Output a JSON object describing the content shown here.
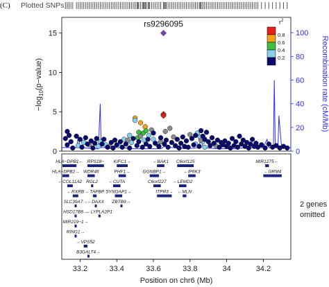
{
  "panel_label": "(C)",
  "snp_track_label": "Plotted SNPs",
  "chart_data": {
    "type": "scatter",
    "title": "",
    "xlabel": "Position on chr6 (Mb)",
    "ylabel": "-log10(p-value)",
    "ylabel_main": "−log",
    "ylabel_sub": "10",
    "ylabel_rest": "(p−value)",
    "y2label": "Recombination rate (cM/Mb)",
    "xlim": [
      33.1,
      34.35
    ],
    "ylim": [
      0,
      17
    ],
    "y2lim": [
      0,
      113
    ],
    "xticks": [
      33.2,
      33.4,
      33.6,
      33.8,
      34.0,
      34.2
    ],
    "xtick_labels": [
      "33.2",
      "33.4",
      "33.6",
      "33.8",
      "34",
      "34.2"
    ],
    "yticks": [
      0,
      5,
      10,
      15
    ],
    "yticks_labels": [
      "0",
      "5",
      "10",
      "15"
    ],
    "y2ticks": [
      0,
      20,
      40,
      60,
      80,
      100
    ],
    "y2tick_labels": [
      "0",
      "20",
      "40",
      "60",
      "80",
      "100"
    ],
    "lead_snp": {
      "name": "rs9296095",
      "x": 33.655,
      "y": 15.0,
      "color": "#7b3fbf"
    },
    "legend": {
      "title": "r",
      "title_sup": "2",
      "entries": [
        {
          "label": "0.8",
          "color": "#e8211c"
        },
        {
          "label": "0.6",
          "color": "#f4a11c"
        },
        {
          "label": "0.4",
          "color": "#3fbf3f"
        },
        {
          "label": "0.2",
          "color": "#87ceeb"
        },
        {
          "label": "",
          "color": "#0a0a6e"
        }
      ],
      "placement": "top-right"
    },
    "colors": {
      "r2_high": "#e8211c",
      "r2_mid_high": "#f4a11c",
      "r2_mid": "#3fbf3f",
      "r2_low_mid": "#87ceeb",
      "r2_low": "#0a0a6e",
      "missing": "#8c8c8c",
      "recomb": "#2c2cff",
      "axis_right": "#2c2cff",
      "gene": "#1a237e"
    },
    "points": [
      {
        "x": 33.655,
        "y": 4.7,
        "c": "r2_high"
      },
      {
        "x": 33.655,
        "y": 4.5,
        "c": "r2_high"
      },
      {
        "x": 33.5,
        "y": 4.2,
        "c": "r2_mid_high"
      },
      {
        "x": 33.53,
        "y": 3.6,
        "c": "r2_mid_high"
      },
      {
        "x": 33.555,
        "y": 3.1,
        "c": "r2_mid_high"
      },
      {
        "x": 33.52,
        "y": 2.4,
        "c": "r2_mid"
      },
      {
        "x": 33.545,
        "y": 2.3,
        "c": "r2_mid"
      },
      {
        "x": 33.56,
        "y": 2.6,
        "c": "r2_mid"
      },
      {
        "x": 33.515,
        "y": 1.7,
        "c": "r2_mid"
      },
      {
        "x": 33.5,
        "y": 3.9,
        "c": "r2_low_mid"
      },
      {
        "x": 33.47,
        "y": 2.0,
        "c": "r2_low_mid"
      },
      {
        "x": 33.44,
        "y": 1.5,
        "c": "r2_low_mid"
      },
      {
        "x": 33.48,
        "y": 1.1,
        "c": "r2_low_mid"
      },
      {
        "x": 33.55,
        "y": 1.4,
        "c": "r2_low_mid"
      },
      {
        "x": 33.575,
        "y": 2.0,
        "c": "r2_low_mid"
      },
      {
        "x": 33.6,
        "y": 1.5,
        "c": "r2_low_mid"
      },
      {
        "x": 33.31,
        "y": 1.2,
        "c": "r2_low_mid"
      },
      {
        "x": 33.34,
        "y": 0.8,
        "c": "r2_low_mid"
      },
      {
        "x": 33.3,
        "y": 0.6,
        "c": "r2_low_mid"
      },
      {
        "x": 33.22,
        "y": 1.1,
        "c": "r2_low_mid"
      },
      {
        "x": 33.19,
        "y": 0.7,
        "c": "r2_low_mid"
      },
      {
        "x": 33.84,
        "y": 2.3,
        "c": "r2_low_mid"
      },
      {
        "x": 33.855,
        "y": 1.8,
        "c": "r2_low_mid"
      },
      {
        "x": 33.87,
        "y": 1.2,
        "c": "r2_low_mid"
      },
      {
        "x": 33.83,
        "y": 0.9,
        "c": "r2_low_mid"
      },
      {
        "x": 33.88,
        "y": 0.5,
        "c": "r2_low_mid"
      },
      {
        "x": 33.62,
        "y": 0.9,
        "c": "r2_low_mid"
      },
      {
        "x": 33.41,
        "y": 0.7,
        "c": "r2_low_mid"
      },
      {
        "x": 33.665,
        "y": 2.5,
        "c": "missing"
      },
      {
        "x": 33.69,
        "y": 2.9,
        "c": "missing"
      },
      {
        "x": 33.59,
        "y": 2.7,
        "c": "missing"
      },
      {
        "x": 33.53,
        "y": 1.9,
        "c": "missing"
      },
      {
        "x": 33.46,
        "y": 1.4,
        "c": "missing"
      },
      {
        "x": 33.71,
        "y": 1.8,
        "c": "missing"
      },
      {
        "x": 33.64,
        "y": 1.2,
        "c": "missing"
      },
      {
        "x": 33.25,
        "y": 0.8,
        "c": "missing"
      },
      {
        "x": 33.36,
        "y": 0.6,
        "c": "missing"
      },
      {
        "x": 33.8,
        "y": 2.1,
        "c": "missing"
      },
      {
        "x": 33.86,
        "y": 1.4,
        "c": "missing"
      },
      {
        "x": 33.94,
        "y": 0.7,
        "c": "missing"
      },
      {
        "x": 33.13,
        "y": 2.5,
        "c": "r2_low"
      },
      {
        "x": 33.14,
        "y": 2.0,
        "c": "r2_low"
      },
      {
        "x": 33.12,
        "y": 1.6,
        "c": "r2_low"
      },
      {
        "x": 33.15,
        "y": 1.2,
        "c": "r2_low"
      },
      {
        "x": 33.13,
        "y": 0.8,
        "c": "r2_low"
      },
      {
        "x": 33.16,
        "y": 0.4,
        "c": "r2_low"
      },
      {
        "x": 33.18,
        "y": 1.9,
        "c": "r2_low"
      },
      {
        "x": 33.2,
        "y": 1.5,
        "c": "r2_low"
      },
      {
        "x": 33.21,
        "y": 0.5,
        "c": "r2_low"
      },
      {
        "x": 33.23,
        "y": 1.7,
        "c": "r2_low"
      },
      {
        "x": 33.24,
        "y": 0.9,
        "c": "r2_low"
      },
      {
        "x": 33.26,
        "y": 1.3,
        "c": "r2_low"
      },
      {
        "x": 33.27,
        "y": 0.4,
        "c": "r2_low"
      },
      {
        "x": 33.28,
        "y": 1.0,
        "c": "r2_low"
      },
      {
        "x": 33.29,
        "y": 1.6,
        "c": "r2_low"
      },
      {
        "x": 33.32,
        "y": 0.9,
        "c": "r2_low"
      },
      {
        "x": 33.33,
        "y": 1.5,
        "c": "r2_low"
      },
      {
        "x": 33.35,
        "y": 0.5,
        "c": "r2_low"
      },
      {
        "x": 33.37,
        "y": 1.1,
        "c": "r2_low"
      },
      {
        "x": 33.38,
        "y": 0.4,
        "c": "r2_low"
      },
      {
        "x": 33.39,
        "y": 1.4,
        "c": "r2_low"
      },
      {
        "x": 33.4,
        "y": 0.8,
        "c": "r2_low"
      },
      {
        "x": 33.42,
        "y": 1.2,
        "c": "r2_low"
      },
      {
        "x": 33.43,
        "y": 0.5,
        "c": "r2_low"
      },
      {
        "x": 33.45,
        "y": 0.9,
        "c": "r2_low"
      },
      {
        "x": 33.47,
        "y": 0.4,
        "c": "r2_low"
      },
      {
        "x": 33.49,
        "y": 1.6,
        "c": "r2_low"
      },
      {
        "x": 33.51,
        "y": 0.7,
        "c": "r2_low"
      },
      {
        "x": 33.52,
        "y": 1.2,
        "c": "r2_low"
      },
      {
        "x": 33.54,
        "y": 0.5,
        "c": "r2_low"
      },
      {
        "x": 33.56,
        "y": 0.9,
        "c": "r2_low"
      },
      {
        "x": 33.57,
        "y": 1.5,
        "c": "r2_low"
      },
      {
        "x": 33.58,
        "y": 0.6,
        "c": "r2_low"
      },
      {
        "x": 33.6,
        "y": 2.3,
        "c": "r2_low"
      },
      {
        "x": 33.61,
        "y": 1.0,
        "c": "r2_low"
      },
      {
        "x": 33.63,
        "y": 0.6,
        "c": "r2_low"
      },
      {
        "x": 33.64,
        "y": 1.7,
        "c": "r2_low"
      },
      {
        "x": 33.66,
        "y": 0.9,
        "c": "r2_low"
      },
      {
        "x": 33.67,
        "y": 1.4,
        "c": "r2_low"
      },
      {
        "x": 33.68,
        "y": 0.5,
        "c": "r2_low"
      },
      {
        "x": 33.7,
        "y": 1.1,
        "c": "r2_low"
      },
      {
        "x": 33.72,
        "y": 0.7,
        "c": "r2_low"
      },
      {
        "x": 33.73,
        "y": 1.5,
        "c": "r2_low"
      },
      {
        "x": 33.74,
        "y": 0.4,
        "c": "r2_low"
      },
      {
        "x": 33.75,
        "y": 1.0,
        "c": "r2_low"
      },
      {
        "x": 33.76,
        "y": 1.8,
        "c": "r2_low"
      },
      {
        "x": 33.77,
        "y": 0.6,
        "c": "r2_low"
      },
      {
        "x": 33.78,
        "y": 1.3,
        "c": "r2_low"
      },
      {
        "x": 33.79,
        "y": 0.5,
        "c": "r2_low"
      },
      {
        "x": 33.81,
        "y": 1.6,
        "c": "r2_low"
      },
      {
        "x": 33.82,
        "y": 0.8,
        "c": "r2_low"
      },
      {
        "x": 33.83,
        "y": 2.0,
        "c": "r2_low"
      },
      {
        "x": 33.85,
        "y": 0.6,
        "c": "r2_low"
      },
      {
        "x": 33.86,
        "y": 2.6,
        "c": "r2_low"
      },
      {
        "x": 33.87,
        "y": 1.9,
        "c": "r2_low"
      },
      {
        "x": 33.88,
        "y": 1.5,
        "c": "r2_low"
      },
      {
        "x": 33.89,
        "y": 2.4,
        "c": "r2_low"
      },
      {
        "x": 33.9,
        "y": 1.2,
        "c": "r2_low"
      },
      {
        "x": 33.91,
        "y": 0.7,
        "c": "r2_low"
      },
      {
        "x": 33.92,
        "y": 1.7,
        "c": "r2_low"
      },
      {
        "x": 33.93,
        "y": 1.0,
        "c": "r2_low"
      },
      {
        "x": 33.95,
        "y": 1.4,
        "c": "r2_low"
      },
      {
        "x": 33.96,
        "y": 0.5,
        "c": "r2_low"
      },
      {
        "x": 33.97,
        "y": 1.1,
        "c": "r2_low"
      },
      {
        "x": 33.98,
        "y": 0.8,
        "c": "r2_low"
      },
      {
        "x": 33.99,
        "y": 1.3,
        "c": "r2_low"
      },
      {
        "x": 34.0,
        "y": 0.6,
        "c": "r2_low"
      },
      {
        "x": 34.01,
        "y": 1.0,
        "c": "r2_low"
      },
      {
        "x": 34.02,
        "y": 0.4,
        "c": "r2_low"
      },
      {
        "x": 34.03,
        "y": 1.6,
        "c": "r2_low"
      },
      {
        "x": 34.04,
        "y": 0.7,
        "c": "r2_low"
      },
      {
        "x": 34.05,
        "y": 1.2,
        "c": "r2_low"
      },
      {
        "x": 34.06,
        "y": 0.5,
        "c": "r2_low"
      },
      {
        "x": 34.07,
        "y": 1.9,
        "c": "r2_low"
      },
      {
        "x": 34.08,
        "y": 0.9,
        "c": "r2_low"
      },
      {
        "x": 34.09,
        "y": 1.4,
        "c": "r2_low"
      },
      {
        "x": 34.1,
        "y": 0.6,
        "c": "r2_low"
      },
      {
        "x": 34.11,
        "y": 1.1,
        "c": "r2_low"
      },
      {
        "x": 34.12,
        "y": 0.4,
        "c": "r2_low"
      },
      {
        "x": 34.13,
        "y": 0.9,
        "c": "r2_low"
      },
      {
        "x": 34.14,
        "y": 1.5,
        "c": "r2_low"
      },
      {
        "x": 34.15,
        "y": 0.6,
        "c": "r2_low"
      },
      {
        "x": 34.16,
        "y": 1.0,
        "c": "r2_low"
      },
      {
        "x": 34.17,
        "y": 0.5,
        "c": "r2_low"
      },
      {
        "x": 34.19,
        "y": 0.8,
        "c": "r2_low"
      },
      {
        "x": 34.21,
        "y": 0.4,
        "c": "r2_low"
      },
      {
        "x": 34.23,
        "y": 0.9,
        "c": "r2_low"
      },
      {
        "x": 34.25,
        "y": 0.5,
        "c": "r2_low"
      },
      {
        "x": 34.27,
        "y": 0.7,
        "c": "r2_low"
      },
      {
        "x": 34.29,
        "y": 0.4,
        "c": "r2_low"
      },
      {
        "x": 34.31,
        "y": 0.6,
        "c": "r2_low"
      },
      {
        "x": 34.33,
        "y": 0.4,
        "c": "r2_low"
      }
    ],
    "recombination": [
      [
        33.1,
        3
      ],
      [
        33.18,
        3
      ],
      [
        33.19,
        12
      ],
      [
        33.2,
        3
      ],
      [
        33.28,
        2
      ],
      [
        33.3,
        2
      ],
      [
        33.31,
        40
      ],
      [
        33.315,
        3
      ],
      [
        33.4,
        3
      ],
      [
        33.41,
        8
      ],
      [
        33.42,
        3
      ],
      [
        33.5,
        2
      ],
      [
        33.6,
        2
      ],
      [
        33.64,
        2
      ],
      [
        33.66,
        4
      ],
      [
        33.7,
        3
      ],
      [
        33.78,
        2
      ],
      [
        33.85,
        3
      ],
      [
        33.86,
        14
      ],
      [
        33.87,
        3
      ],
      [
        33.95,
        2
      ],
      [
        34.0,
        2
      ],
      [
        34.05,
        2
      ],
      [
        34.1,
        3
      ],
      [
        34.15,
        3
      ],
      [
        34.2,
        3
      ],
      [
        34.22,
        10
      ],
      [
        34.23,
        3
      ],
      [
        34.255,
        3
      ],
      [
        34.26,
        60
      ],
      [
        34.265,
        3
      ],
      [
        34.28,
        3
      ],
      [
        34.285,
        30
      ],
      [
        34.29,
        20
      ],
      [
        34.3,
        3
      ],
      [
        34.35,
        3
      ]
    ],
    "genes": [
      {
        "name": "HLA−DPB1",
        "label": "HLA−DPB1←",
        "x1": 33.04,
        "x2": 33.18,
        "row": 0,
        "dir": "rtl"
      },
      {
        "name": "RPS18",
        "label": "RPS18−",
        "x1": 33.24,
        "x2": 33.33,
        "row": 0,
        "dir": "ltr"
      },
      {
        "name": "KIFC1",
        "label": "KIFC1→",
        "x1": 33.4,
        "x2": 33.46,
        "row": 0,
        "dir": "ltr"
      },
      {
        "name": "BAK1",
        "label": "←BAK1",
        "x1": 33.62,
        "x2": 33.66,
        "row": 0,
        "dir": "rtl"
      },
      {
        "name": "C6orf125",
        "label": "C6orf125",
        "x1": 33.73,
        "x2": 33.82,
        "row": 0,
        "dir": "rtl"
      },
      {
        "name": "MIR1275",
        "label": "MIR1275←",
        "x1": 34.21,
        "x2": 34.23,
        "row": 0,
        "dir": "rtl"
      },
      {
        "name": "HLA−DPB2",
        "label": "HLA−DPB2→",
        "x1": 33.04,
        "x2": 33.14,
        "row": 1,
        "dir": "ltr"
      },
      {
        "name": "WDR46",
        "label": "WDR46",
        "x1": 33.24,
        "x2": 33.28,
        "row": 1,
        "dir": "rtl"
      },
      {
        "name": "PHF1",
        "label": "PHF1→",
        "x1": 33.41,
        "x2": 33.45,
        "row": 1,
        "dir": "ltr"
      },
      {
        "name": "GGNBP1",
        "label": "GGNBP1→",
        "x1": 33.58,
        "x2": 33.63,
        "row": 1,
        "dir": "ltr"
      },
      {
        "name": "IP6K3",
        "label": "←IP6K3",
        "x1": 33.79,
        "x2": 33.83,
        "row": 1,
        "dir": "rtl"
      },
      {
        "name": "GRM4",
        "label": "←GRM4",
        "x1": 34.2,
        "x2": 34.3,
        "row": 1,
        "dir": "rtl"
      },
      {
        "name": "COL11A2",
        "label": "←COL11A2",
        "x1": 33.13,
        "x2": 33.16,
        "row": 2,
        "dir": "rtl"
      },
      {
        "name": "RGL2",
        "label": "RGL2",
        "x1": 33.26,
        "x2": 33.27,
        "row": 2,
        "dir": "ltr"
      },
      {
        "name": "CUTA",
        "label": "←CUTA",
        "x1": 33.38,
        "x2": 33.42,
        "row": 2,
        "dir": "rtl"
      },
      {
        "name": "C6orf227",
        "label": "C6orf227",
        "x1": 33.6,
        "x2": 33.64,
        "row": 2,
        "dir": "rtl"
      },
      {
        "name": "LEMD2",
        "label": "←LEMD2",
        "x1": 33.74,
        "x2": 33.78,
        "row": 2,
        "dir": "rtl"
      },
      {
        "name": "RXRB",
        "label": "←RXRB",
        "x1": 33.16,
        "x2": 33.19,
        "row": 3,
        "dir": "rtl"
      },
      {
        "name": "TAPBP",
        "label": "←TAPBP",
        "x1": 33.27,
        "x2": 33.29,
        "row": 3,
        "dir": "rtl"
      },
      {
        "name": "SYNGAP1",
        "label": "SYNGAP1→",
        "x1": 33.39,
        "x2": 33.43,
        "row": 3,
        "dir": "ltr"
      },
      {
        "name": "ITPR3",
        "label": "ITPR3→",
        "x1": 33.62,
        "x2": 33.7,
        "row": 3,
        "dir": "ltr"
      },
      {
        "name": "MLN",
        "label": "←MLN",
        "x1": 33.76,
        "x2": 33.78,
        "row": 3,
        "dir": "rtl"
      },
      {
        "name": "SLC39A7",
        "label": "SLC39A7→",
        "x1": 33.17,
        "x2": 33.18,
        "row": 4,
        "dir": "ltr"
      },
      {
        "name": "DAXX",
        "label": "←DAXX",
        "x1": 33.28,
        "x2": 33.29,
        "row": 4,
        "dir": "rtl"
      },
      {
        "name": "ZBTB9",
        "label": "ZBTB9→",
        "x1": 33.42,
        "x2": 33.43,
        "row": 4,
        "dir": "ltr"
      },
      {
        "name": "HSD17B8",
        "label": "HSD17B8→",
        "x1": 33.17,
        "x2": 33.18,
        "row": 5,
        "dir": "ltr"
      },
      {
        "name": "LYPLA2P1",
        "label": "←LYPLA2P1",
        "x1": 33.3,
        "x2": 33.31,
        "row": 5,
        "dir": "rtl"
      },
      {
        "name": "MIR219−1",
        "label": "MIR219−1→",
        "x1": 33.17,
        "x2": 33.18,
        "row": 6,
        "dir": "ltr"
      },
      {
        "name": "RING1",
        "label": "RING1→",
        "x1": 33.17,
        "x2": 33.18,
        "row": 7,
        "dir": "ltr"
      },
      {
        "name": "VPS52",
        "label": "←VPS52",
        "x1": 33.22,
        "x2": 33.24,
        "row": 8,
        "dir": "rtl"
      },
      {
        "name": "B3GALT4",
        "label": "B3GALT4→",
        "x1": 33.24,
        "x2": 33.25,
        "row": 9,
        "dir": "ltr"
      }
    ],
    "genes_omitted_line1": "2 genes",
    "genes_omitted_line2": "omitted"
  }
}
